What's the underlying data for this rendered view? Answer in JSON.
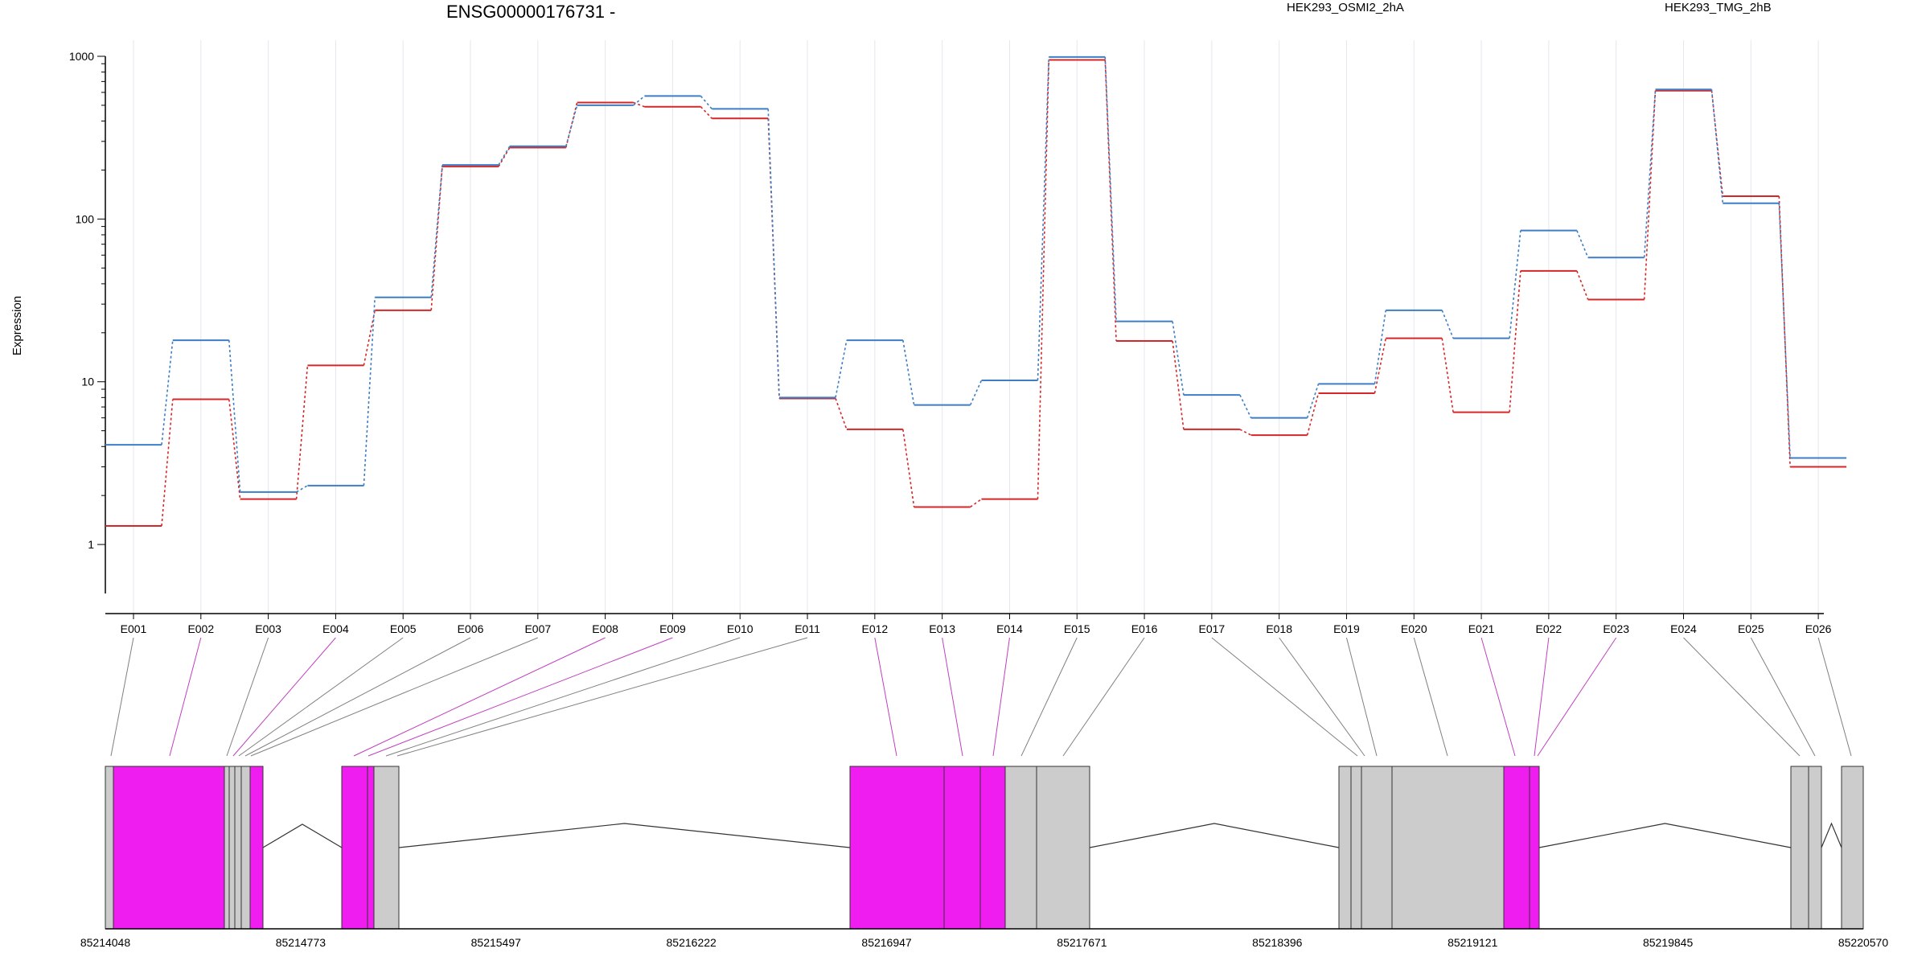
{
  "chart_data": {
    "type": "line",
    "title": "ENSG00000176731 -",
    "ylabel": "Expression",
    "xlabel": "",
    "y_scale": "log",
    "ylim": [
      0.5,
      1000
    ],
    "y_ticks": [
      "1",
      "10",
      "100",
      "1000"
    ],
    "categories": [
      "E001",
      "E002",
      "E003",
      "E004",
      "E005",
      "E006",
      "E007",
      "E008",
      "E009",
      "E010",
      "E011",
      "E012",
      "E013",
      "E014",
      "E015",
      "E016",
      "E017",
      "E018",
      "E019",
      "E020",
      "E021",
      "E022",
      "E023",
      "E024",
      "E025",
      "E026"
    ],
    "series": [
      {
        "name": "HEK293_OSMI2_2hA",
        "color": "#d62728",
        "values": [
          1.3,
          7.8,
          1.9,
          12.6,
          27.5,
          210,
          275,
          520,
          490,
          415,
          7.9,
          5.1,
          1.7,
          1.9,
          950,
          17.8,
          5.1,
          4.7,
          8.5,
          18.5,
          6.5,
          48,
          32,
          615,
          138,
          3.0
        ]
      },
      {
        "name": "HEK293_TMG_2hB",
        "color": "#3d7ec4",
        "values": [
          4.1,
          18,
          2.1,
          2.3,
          33,
          215,
          280,
          500,
          570,
          475,
          8.0,
          18,
          7.2,
          10.2,
          990,
          23.5,
          8.3,
          6.0,
          9.7,
          27.5,
          18.5,
          85,
          58,
          625,
          125,
          3.4
        ]
      }
    ]
  },
  "gene_model": {
    "genomic_coordinates": [
      "85214048",
      "85214773",
      "85215497",
      "85216222",
      "85216947",
      "85217671",
      "85218396",
      "85219121",
      "85219845",
      "85220570"
    ],
    "colors": {
      "significant_exon": "#f01df0",
      "exon": "#cccccc",
      "significant_link": "#c040c0",
      "link": "#808080"
    },
    "exon_significant": [
      false,
      true,
      false,
      true,
      false,
      false,
      false,
      true,
      true,
      false,
      false,
      true,
      true,
      true,
      false,
      false,
      false,
      false,
      false,
      false,
      true,
      true,
      true,
      false,
      false,
      false
    ]
  }
}
